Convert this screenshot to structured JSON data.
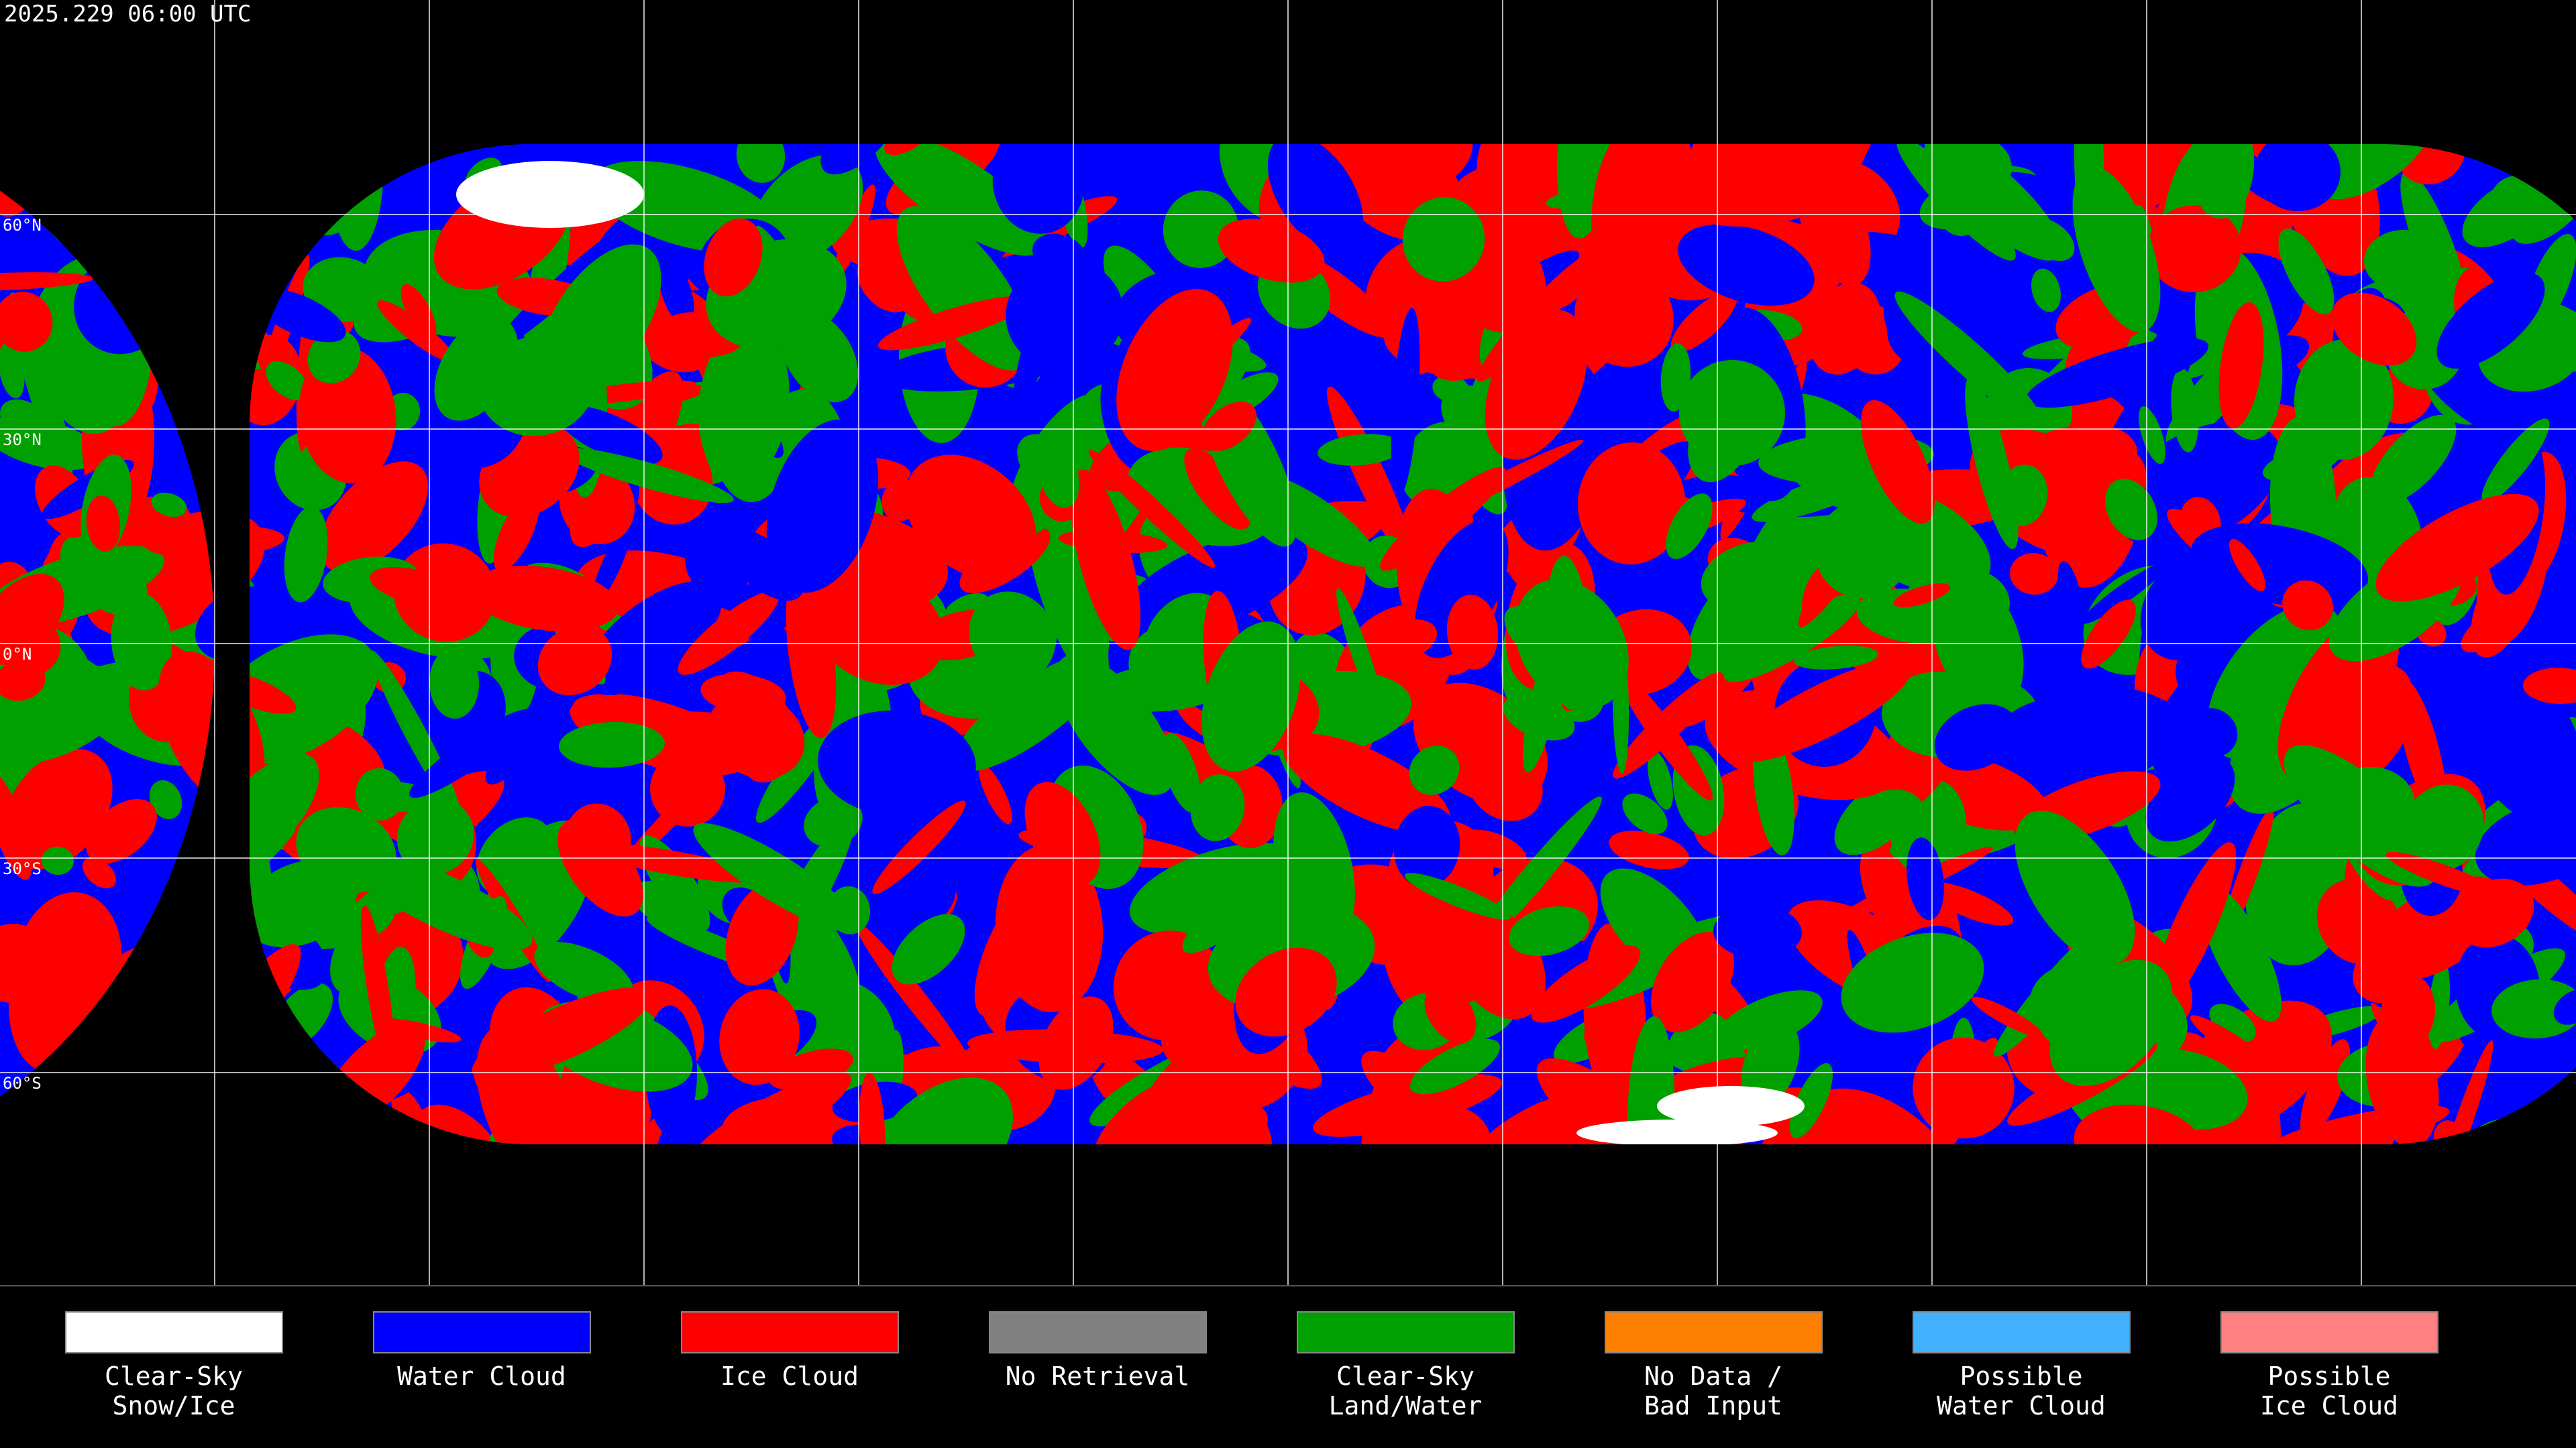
{
  "header": {
    "timestamp": "2025.229 06:00 UTC"
  },
  "map": {
    "latitude_labels": [
      "60°N",
      "30°N",
      "0°N",
      "30°S",
      "60°S"
    ]
  },
  "legend": {
    "items": [
      {
        "label": [
          "Clear-Sky",
          "Snow/Ice"
        ],
        "color": "#ffffff"
      },
      {
        "label": [
          "Water Cloud"
        ],
        "color": "#0000ff"
      },
      {
        "label": [
          "Ice Cloud"
        ],
        "color": "#ff0000"
      },
      {
        "label": [
          "No Retrieval"
        ],
        "color": "#808080"
      },
      {
        "label": [
          "Clear-Sky",
          "Land/Water"
        ],
        "color": "#00a000"
      },
      {
        "label": [
          "No Data /",
          "Bad Input"
        ],
        "color": "#ff8000"
      },
      {
        "label": [
          "Possible",
          "Water Cloud"
        ],
        "color": "#40b0ff"
      },
      {
        "label": [
          "Possible",
          "Ice Cloud"
        ],
        "color": "#ff8080"
      }
    ]
  }
}
